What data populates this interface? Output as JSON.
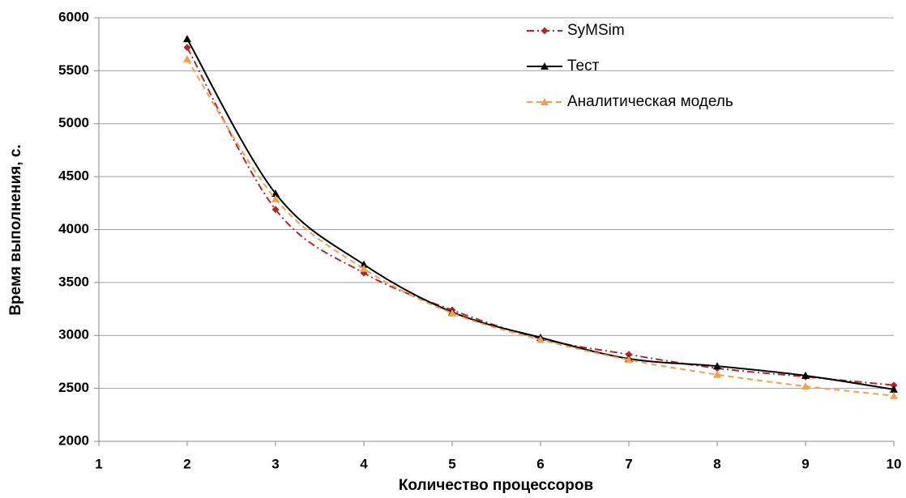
{
  "chart_data": {
    "type": "line",
    "xlabel": "Количество процессоров",
    "ylabel": "Время выполнения, с.",
    "x": [
      2,
      3,
      4,
      5,
      6,
      7,
      8,
      9,
      10
    ],
    "xlim": [
      1,
      10
    ],
    "xticks": [
      1,
      2,
      3,
      4,
      5,
      6,
      7,
      8,
      9,
      10
    ],
    "ylim": [
      2000,
      6000
    ],
    "yticks": [
      2000,
      2500,
      3000,
      3500,
      4000,
      4500,
      5000,
      5500,
      6000
    ],
    "grid": true,
    "series": [
      {
        "name": "SyMSim",
        "color": "#b0282a",
        "linestyle": "dashdot",
        "marker": "diamond",
        "values": [
          5720,
          4190,
          3590,
          3240,
          2970,
          2820,
          2690,
          2610,
          2530
        ]
      },
      {
        "name": "Тест",
        "color": "#000000",
        "linestyle": "solid",
        "marker": "triangle",
        "values": [
          5800,
          4340,
          3670,
          3220,
          2980,
          2780,
          2710,
          2620,
          2490
        ]
      },
      {
        "name": "Аналитическая модель",
        "color": "#f0a050",
        "linestyle": "dashed",
        "marker": "triangle",
        "values": [
          5610,
          4290,
          3630,
          3210,
          2960,
          2770,
          2630,
          2520,
          2430
        ]
      }
    ]
  }
}
